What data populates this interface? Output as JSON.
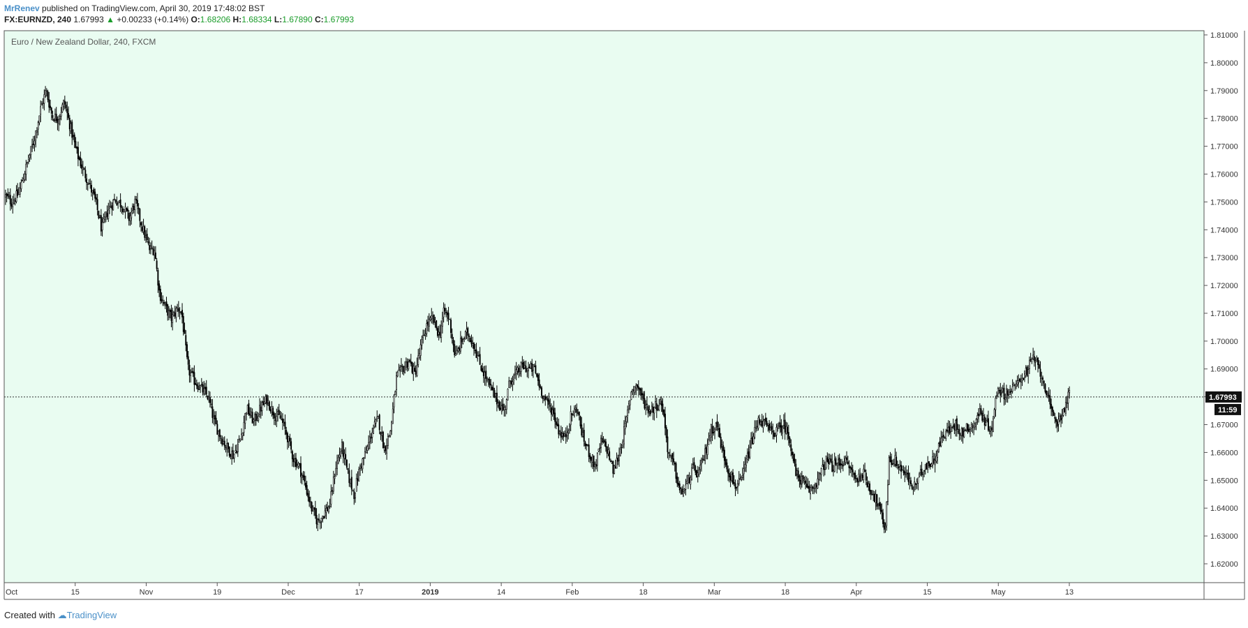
{
  "header": {
    "author": "MrRenev",
    "published_text": " published on TradingView.com, April 30, 2019 17:48:02 BST",
    "symbol": "FX:EURNZD, 240",
    "last": "1.67993",
    "change_arrow": "▲",
    "change": "+0.00233 (+0.14%)",
    "o_label": "O:",
    "o_value": "1.68206",
    "h_label": "H:",
    "h_value": "1.68334",
    "l_label": "L:",
    "l_value": "1.67890",
    "c_label": "C:",
    "c_value": "1.67993"
  },
  "footer": {
    "created_with": "Created with",
    "brand": "TradingView"
  },
  "chart_data": {
    "type": "candlestick",
    "title": "Euro / New Zealand Dollar, 240, FXCM",
    "x_ticks": [
      "Oct",
      "15",
      "Nov",
      "19",
      "Dec",
      "17",
      "2019",
      "14",
      "Feb",
      "18",
      "Mar",
      "18",
      "Apr",
      "15",
      "May",
      "13"
    ],
    "x_bold_ticks": [
      "2019"
    ],
    "y_ticks": [
      "1.81000",
      "1.80000",
      "1.79000",
      "1.78000",
      "1.77000",
      "1.76000",
      "1.75000",
      "1.74000",
      "1.73000",
      "1.72000",
      "1.71000",
      "1.70000",
      "1.69000",
      "1.68000",
      "1.67000",
      "1.66000",
      "1.65000",
      "1.64000",
      "1.63000",
      "1.62000"
    ],
    "ylim": [
      1.6125,
      1.8135
    ],
    "last_price_label": "1.67993",
    "last_price": 1.67993,
    "countdown_label": "11:59",
    "price_path": [
      [
        0.0,
        1.752
      ],
      [
        0.6,
        1.75
      ],
      [
        1.3,
        1.753
      ],
      [
        2.0,
        1.762
      ],
      [
        2.8,
        1.772
      ],
      [
        3.5,
        1.784
      ],
      [
        4.0,
        1.79
      ],
      [
        4.6,
        1.781
      ],
      [
        5.2,
        1.78
      ],
      [
        5.8,
        1.786
      ],
      [
        6.4,
        1.777
      ],
      [
        7.0,
        1.768
      ],
      [
        7.6,
        1.762
      ],
      [
        8.2,
        1.757
      ],
      [
        8.9,
        1.75
      ],
      [
        9.5,
        1.74
      ],
      [
        10.1,
        1.747
      ],
      [
        10.8,
        1.751
      ],
      [
        11.5,
        1.749
      ],
      [
        12.2,
        1.744
      ],
      [
        12.8,
        1.75
      ],
      [
        13.5,
        1.741
      ],
      [
        14.2,
        1.733
      ],
      [
        14.7,
        1.733
      ],
      [
        15.2,
        1.717
      ],
      [
        15.8,
        1.712
      ],
      [
        16.4,
        1.708
      ],
      [
        17.0,
        1.712
      ],
      [
        17.4,
        1.71
      ],
      [
        18.0,
        1.69
      ],
      [
        18.6,
        1.686
      ],
      [
        19.3,
        1.683
      ],
      [
        20.0,
        1.68
      ],
      [
        20.6,
        1.671
      ],
      [
        21.2,
        1.666
      ],
      [
        21.8,
        1.662
      ],
      [
        22.5,
        1.659
      ],
      [
        23.2,
        1.665
      ],
      [
        23.8,
        1.676
      ],
      [
        24.5,
        1.671
      ],
      [
        25.2,
        1.676
      ],
      [
        25.8,
        1.679
      ],
      [
        26.5,
        1.674
      ],
      [
        27.2,
        1.672
      ],
      [
        27.8,
        1.666
      ],
      [
        28.4,
        1.658
      ],
      [
        29.0,
        1.655
      ],
      [
        29.6,
        1.648
      ],
      [
        30.2,
        1.64
      ],
      [
        30.8,
        1.635
      ],
      [
        31.4,
        1.638
      ],
      [
        32.0,
        1.641
      ],
      [
        32.6,
        1.655
      ],
      [
        33.2,
        1.662
      ],
      [
        33.8,
        1.652
      ],
      [
        34.4,
        1.645
      ],
      [
        35.0,
        1.655
      ],
      [
        35.6,
        1.66
      ],
      [
        36.2,
        1.668
      ],
      [
        36.8,
        1.672
      ],
      [
        37.4,
        1.661
      ],
      [
        38.0,
        1.668
      ],
      [
        38.6,
        1.687
      ],
      [
        39.2,
        1.69
      ],
      [
        39.8,
        1.693
      ],
      [
        40.4,
        1.688
      ],
      [
        41.0,
        1.698
      ],
      [
        41.6,
        1.706
      ],
      [
        42.2,
        1.708
      ],
      [
        42.8,
        1.702
      ],
      [
        43.3,
        1.711
      ],
      [
        43.8,
        1.708
      ],
      [
        44.4,
        1.694
      ],
      [
        45.0,
        1.7
      ],
      [
        45.6,
        1.703
      ],
      [
        46.2,
        1.699
      ],
      [
        46.8,
        1.692
      ],
      [
        47.4,
        1.687
      ],
      [
        48.0,
        1.682
      ],
      [
        48.6,
        1.678
      ],
      [
        49.2,
        1.675
      ],
      [
        49.8,
        1.686
      ],
      [
        50.4,
        1.688
      ],
      [
        51.0,
        1.691
      ],
      [
        51.6,
        1.69
      ],
      [
        52.2,
        1.69
      ],
      [
        52.8,
        1.683
      ],
      [
        53.4,
        1.678
      ],
      [
        54.0,
        1.675
      ],
      [
        54.6,
        1.668
      ],
      [
        55.2,
        1.665
      ],
      [
        55.8,
        1.673
      ],
      [
        56.4,
        1.676
      ],
      [
        57.0,
        1.665
      ],
      [
        57.6,
        1.66
      ],
      [
        58.2,
        1.655
      ],
      [
        58.8,
        1.664
      ],
      [
        59.4,
        1.661
      ],
      [
        60.0,
        1.653
      ],
      [
        60.6,
        1.66
      ],
      [
        61.2,
        1.67
      ],
      [
        61.8,
        1.683
      ],
      [
        62.4,
        1.684
      ],
      [
        63.0,
        1.678
      ],
      [
        63.6,
        1.675
      ],
      [
        64.2,
        1.677
      ],
      [
        64.8,
        1.678
      ],
      [
        65.4,
        1.66
      ],
      [
        66.0,
        1.655
      ],
      [
        66.6,
        1.645
      ],
      [
        67.2,
        1.648
      ],
      [
        67.8,
        1.654
      ],
      [
        68.4,
        1.652
      ],
      [
        69.0,
        1.659
      ],
      [
        69.6,
        1.668
      ],
      [
        70.2,
        1.67
      ],
      [
        70.8,
        1.66
      ],
      [
        71.4,
        1.653
      ],
      [
        72.0,
        1.648
      ],
      [
        72.6,
        1.649
      ],
      [
        73.2,
        1.658
      ],
      [
        73.8,
        1.666
      ],
      [
        74.4,
        1.672
      ],
      [
        75.0,
        1.67
      ],
      [
        75.6,
        1.667
      ],
      [
        76.2,
        1.668
      ],
      [
        76.8,
        1.67
      ],
      [
        77.4,
        1.665
      ],
      [
        78.0,
        1.652
      ],
      [
        78.6,
        1.65
      ],
      [
        79.2,
        1.646
      ],
      [
        79.8,
        1.648
      ],
      [
        80.4,
        1.652
      ],
      [
        81.0,
        1.657
      ],
      [
        81.6,
        1.655
      ],
      [
        82.2,
        1.656
      ],
      [
        82.8,
        1.657
      ],
      [
        83.4,
        1.654
      ],
      [
        84.0,
        1.65
      ],
      [
        84.6,
        1.653
      ],
      [
        85.2,
        1.648
      ],
      [
        85.8,
        1.644
      ],
      [
        86.4,
        1.638
      ],
      [
        86.8,
        1.632
      ],
      [
        87.2,
        1.657
      ],
      [
        87.8,
        1.657
      ],
      [
        88.4,
        1.654
      ],
      [
        89.0,
        1.651
      ],
      [
        89.6,
        1.647
      ],
      [
        90.2,
        1.651
      ],
      [
        90.8,
        1.656
      ],
      [
        91.4,
        1.656
      ],
      [
        92.0,
        1.661
      ],
      [
        92.6,
        1.667
      ],
      [
        93.2,
        1.668
      ],
      [
        93.8,
        1.67
      ],
      [
        94.4,
        1.667
      ],
      [
        95.0,
        1.669
      ],
      [
        95.6,
        1.67
      ],
      [
        96.2,
        1.675
      ],
      [
        96.8,
        1.67
      ],
      [
        97.4,
        1.669
      ],
      [
        97.9,
        1.684
      ],
      [
        98.4,
        1.681
      ],
      [
        99.0,
        1.682
      ],
      [
        99.6,
        1.683
      ],
      [
        100.2,
        1.687
      ],
      [
        100.8,
        1.689
      ],
      [
        101.4,
        1.694
      ],
      [
        102.0,
        1.69
      ],
      [
        102.6,
        1.684
      ],
      [
        103.2,
        1.674
      ],
      [
        103.8,
        1.671
      ],
      [
        104.4,
        1.675
      ],
      [
        105.0,
        1.681
      ]
    ]
  }
}
